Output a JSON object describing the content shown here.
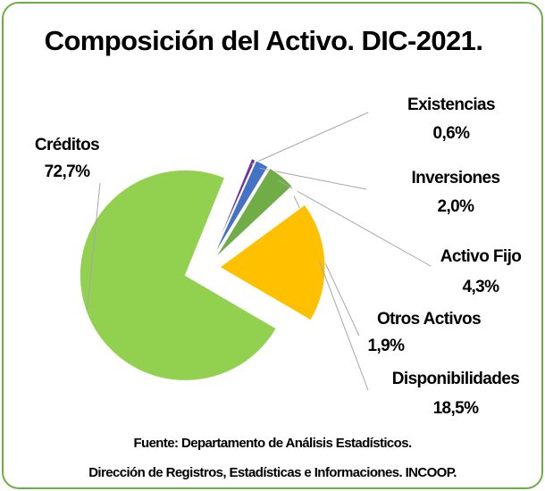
{
  "chart_data": {
    "type": "pie",
    "title": "Composición del Activo. DIC-2021.",
    "categories": [
      "Existencias",
      "Inversiones",
      "Activo Fijo",
      "Otros Activos",
      "Disponibilidades",
      "Créditos"
    ],
    "values": [
      0.6,
      2.0,
      4.3,
      1.9,
      18.5,
      72.7
    ],
    "value_labels": [
      "0,6%",
      "2,0%",
      "4,3%",
      "1,9%",
      "18,5%",
      "72,7%"
    ],
    "colors": [
      "#7030a0",
      "#4472c4",
      "#70ad47",
      "#ffffff",
      "#ffc000",
      "#92d050"
    ],
    "source": [
      "Fuente: Departamento de Análisis Estadísticos.",
      "Dirección de Registros, Estadísticas e Informaciones. INCOOP."
    ]
  }
}
